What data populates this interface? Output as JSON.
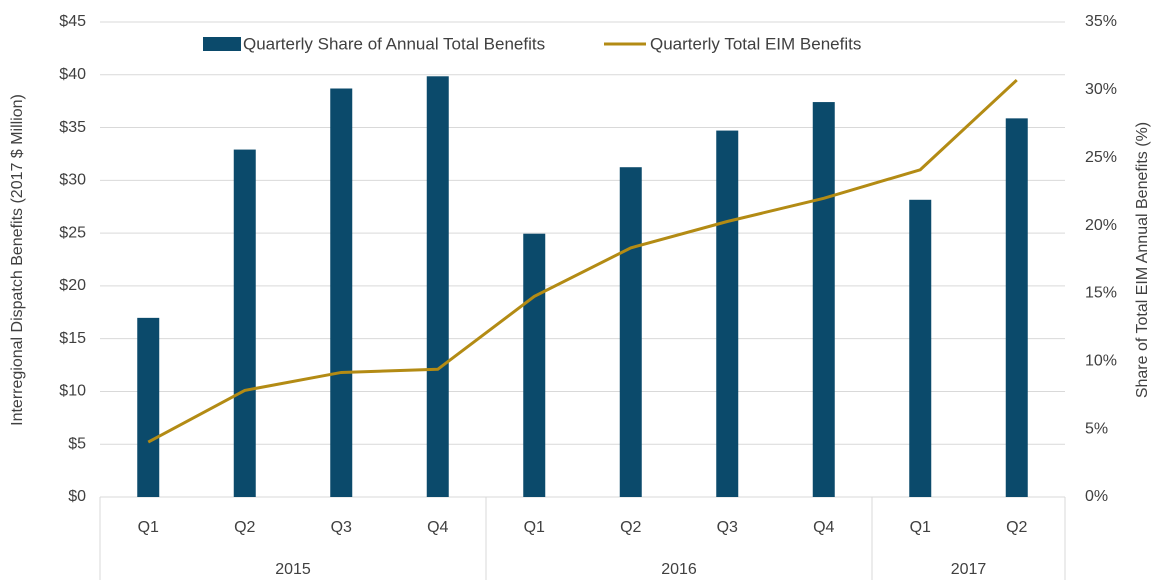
{
  "chart_data": {
    "type": "bar_line",
    "groups": [
      {
        "name": "2015",
        "categories": [
          "Q1",
          "Q2",
          "Q3",
          "Q4"
        ]
      },
      {
        "name": "2016",
        "categories": [
          "Q1",
          "Q2",
          "Q3",
          "Q4"
        ]
      },
      {
        "name": "2017",
        "categories": [
          "Q1",
          "Q2"
        ]
      }
    ],
    "series": [
      {
        "name": "Quarterly Share of Annual Total Benefits",
        "type": "bar",
        "axis": "y2",
        "color": "#0b4a6b",
        "values": [
          13.2,
          25.6,
          30.1,
          31.0,
          19.4,
          24.3,
          27.0,
          29.1,
          21.9,
          27.9
        ]
      },
      {
        "name": "Quarterly Total EIM Benefits",
        "type": "line",
        "axis": "y",
        "color": "#b38b14",
        "values": [
          5.2,
          10.1,
          11.8,
          12.1,
          19.0,
          23.6,
          26.1,
          28.3,
          31.0,
          39.5
        ]
      }
    ],
    "y_label": "Interregional Dispatch Benefits (2017 $ Million)",
    "y2_label": "Share of Total EIM Annual Benefits (%)",
    "ylim": [
      0,
      45
    ],
    "yticks": [
      {
        "value": 0,
        "label": "$0"
      },
      {
        "value": 5,
        "label": "$5"
      },
      {
        "value": 10,
        "label": "$10"
      },
      {
        "value": 15,
        "label": "$15"
      },
      {
        "value": 20,
        "label": "$20"
      },
      {
        "value": 25,
        "label": "$25"
      },
      {
        "value": 30,
        "label": "$30"
      },
      {
        "value": 35,
        "label": "$35"
      },
      {
        "value": 40,
        "label": "$40"
      },
      {
        "value": 45,
        "label": "$45"
      }
    ],
    "y2lim": [
      0,
      35
    ],
    "y2ticks": [
      {
        "value": 0,
        "label": "0%"
      },
      {
        "value": 5,
        "label": "5%"
      },
      {
        "value": 10,
        "label": "10%"
      },
      {
        "value": 15,
        "label": "15%"
      },
      {
        "value": 20,
        "label": "20%"
      },
      {
        "value": 25,
        "label": "25%"
      },
      {
        "value": 30,
        "label": "30%"
      },
      {
        "value": 35,
        "label": "35%"
      }
    ],
    "grid": true,
    "legend": "top"
  }
}
